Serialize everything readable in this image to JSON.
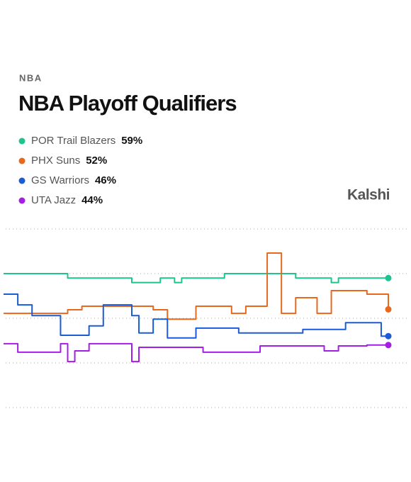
{
  "chart_data": {
    "type": "line",
    "subtitle": "NBA",
    "title": "NBA Playoff Qualifiers",
    "brand": "Kalshi",
    "categories": [
      null,
      null,
      null,
      null,
      null,
      null,
      null,
      null,
      null,
      null,
      null,
      null,
      null,
      null,
      null,
      null,
      null,
      null,
      null,
      null,
      null,
      null,
      null,
      null,
      null,
      null,
      null,
      null,
      null,
      null,
      null,
      null,
      null,
      null,
      null,
      null,
      null,
      null,
      null,
      null,
      null,
      null,
      null,
      null,
      null,
      null,
      null,
      null,
      null,
      null,
      null,
      null,
      null,
      null,
      null
    ],
    "ylim": [
      30,
      70
    ],
    "yticks": [
      30,
      40,
      50,
      60,
      70
    ],
    "grid": true,
    "step": true,
    "series": [
      {
        "name": "POR Trail Blazers",
        "color": "#1fc38f",
        "values": [
          60,
          60,
          60,
          60,
          60,
          60,
          60,
          60,
          60,
          59,
          59,
          59,
          59,
          59,
          59,
          59,
          59,
          59,
          58,
          58,
          58,
          58,
          59,
          59,
          58,
          59,
          59,
          59,
          59,
          59,
          59,
          60,
          60,
          60,
          60,
          60,
          60,
          60,
          60,
          60,
          60,
          59,
          59,
          59,
          59,
          59,
          58,
          59,
          59,
          59,
          59,
          59,
          59,
          59,
          59
        ],
        "value_labels": [
          null,
          null,
          null,
          null,
          null,
          null,
          null,
          null,
          null,
          null,
          null,
          null,
          null,
          null,
          null,
          null,
          null,
          null,
          null,
          null,
          null,
          null,
          null,
          null,
          null,
          null,
          null,
          null,
          null,
          null,
          null,
          null,
          null,
          null,
          null,
          null,
          null,
          null,
          null,
          null,
          null,
          null,
          null,
          null,
          null,
          null,
          null,
          null,
          null,
          null,
          null,
          null,
          null,
          null,
          "59%"
        ]
      },
      {
        "name": "PHX Suns",
        "color": "#e8681e",
        "values": [
          51.1,
          51.1,
          51.1,
          51.1,
          51.1,
          51.1,
          51.1,
          51.1,
          51.1,
          51.9,
          51.9,
          52.7,
          52.7,
          52.7,
          52.7,
          52.7,
          52.7,
          52.7,
          52.7,
          52.7,
          52.7,
          51.9,
          51.9,
          49.8,
          49.8,
          49.8,
          49.8,
          52.7,
          52.7,
          52.7,
          52.7,
          52.7,
          51.1,
          51.1,
          52.7,
          52.7,
          52.7,
          64.6,
          64.6,
          51.1,
          51.1,
          54.6,
          54.6,
          54.6,
          51.1,
          51.1,
          56.2,
          56.2,
          56.2,
          56.2,
          56.2,
          55.4,
          55.4,
          55.4,
          52
        ],
        "value_labels": [
          null,
          null,
          null,
          null,
          null,
          null,
          null,
          null,
          null,
          null,
          null,
          null,
          null,
          null,
          null,
          null,
          null,
          null,
          null,
          null,
          null,
          null,
          null,
          null,
          null,
          null,
          null,
          null,
          null,
          null,
          null,
          null,
          null,
          null,
          null,
          null,
          null,
          null,
          null,
          null,
          null,
          null,
          null,
          null,
          null,
          null,
          null,
          null,
          null,
          null,
          null,
          null,
          null,
          null,
          "52%"
        ]
      },
      {
        "name": "GS Warriors",
        "color": "#1a5bd6",
        "values": [
          55.4,
          55.4,
          53,
          53,
          50.6,
          50.6,
          50.6,
          50.6,
          46.2,
          46.2,
          46.2,
          46.2,
          48.3,
          48.3,
          53,
          53,
          53,
          53,
          50.6,
          46.7,
          46.7,
          49.8,
          49.8,
          45.6,
          45.6,
          45.6,
          45.6,
          47.8,
          47.8,
          47.8,
          47.8,
          47.8,
          47.8,
          46.7,
          46.7,
          46.7,
          46.7,
          46.7,
          46.7,
          46.7,
          46.7,
          46.7,
          47.5,
          47.5,
          47.5,
          47.5,
          47.5,
          47.5,
          49,
          49,
          49,
          49,
          49,
          46,
          46
        ],
        "value_labels": [
          null,
          null,
          null,
          null,
          null,
          null,
          null,
          null,
          null,
          null,
          null,
          null,
          null,
          null,
          null,
          null,
          null,
          null,
          null,
          null,
          null,
          null,
          null,
          null,
          null,
          null,
          null,
          null,
          null,
          null,
          null,
          null,
          null,
          null,
          null,
          null,
          null,
          null,
          null,
          null,
          null,
          null,
          null,
          null,
          null,
          null,
          null,
          null,
          null,
          null,
          null,
          null,
          null,
          null,
          "46%"
        ]
      },
      {
        "name": "UTA Jazz",
        "color": "#a51ee3",
        "values": [
          44.3,
          44.3,
          42.4,
          42.4,
          42.4,
          42.4,
          42.4,
          42.4,
          44.3,
          40.3,
          42.7,
          42.7,
          44.3,
          44.3,
          44.3,
          44.3,
          44.3,
          44.3,
          40.3,
          43.5,
          43.5,
          43.5,
          43.5,
          43.5,
          43.5,
          43.5,
          43.5,
          43.5,
          42.4,
          42.4,
          42.4,
          42.4,
          42.4,
          42.4,
          42.4,
          42.4,
          43.8,
          43.8,
          43.8,
          43.8,
          43.8,
          43.8,
          43.8,
          43.8,
          43.8,
          42.7,
          42.7,
          43.8,
          43.8,
          43.8,
          43.8,
          44,
          44,
          44,
          44
        ],
        "value_labels": [
          null,
          null,
          null,
          null,
          null,
          null,
          null,
          null,
          null,
          null,
          null,
          null,
          null,
          null,
          null,
          null,
          null,
          null,
          null,
          null,
          null,
          null,
          null,
          null,
          null,
          null,
          null,
          null,
          null,
          null,
          null,
          null,
          null,
          null,
          null,
          null,
          null,
          null,
          null,
          null,
          null,
          null,
          null,
          null,
          null,
          null,
          null,
          null,
          null,
          null,
          null,
          null,
          null,
          null,
          "44%"
        ]
      }
    ]
  }
}
